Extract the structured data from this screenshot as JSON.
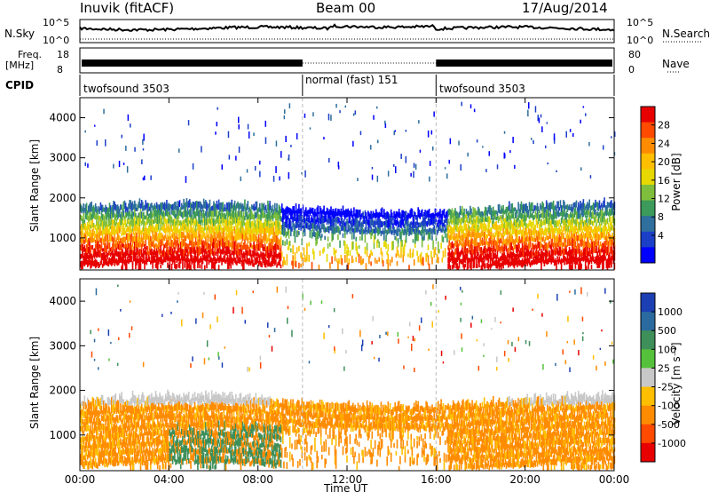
{
  "header": {
    "station": "Inuvik (fitACF)",
    "beam": "Beam 00",
    "date": "17/Aug/2014"
  },
  "strips": {
    "nsky_label": "N.Sky",
    "nsky_ticks": [
      "10^5",
      "10^0"
    ],
    "nsearch_label": "N.Search",
    "nsearch_ticks": [
      "10^5",
      "10^0"
    ],
    "freq_label_1": "Freq.",
    "freq_label_2": "[MHz]",
    "freq_ticks": [
      "18",
      "8"
    ],
    "nave_label": "Nave",
    "nave_ticks": [
      "80",
      "0"
    ],
    "cpid_label": "CPID",
    "cpid_segments": [
      {
        "label": "twofsound 3503",
        "start": 0,
        "end": 10
      },
      {
        "label": "normal (fast) 151",
        "start": 10,
        "end": 16
      },
      {
        "label": "twofsound 3503",
        "start": 16,
        "end": 24
      }
    ]
  },
  "chart_data": [
    {
      "type": "heatmap",
      "panel": "power",
      "ylabel": "Slant Range [km]",
      "xlabel": "Time UT",
      "xlim": [
        0,
        24
      ],
      "ylim": [
        200,
        4500
      ],
      "xticks": [
        "00:00",
        "04:00",
        "08:00",
        "12:00",
        "16:00",
        "20:00",
        "00:00"
      ],
      "yticks": [
        "1000",
        "2000",
        "3000",
        "4000"
      ],
      "colorbar": {
        "label": "Power [dB]",
        "ticks": [
          "28",
          "24",
          "20",
          "16",
          "12",
          "8",
          "4"
        ],
        "colors": [
          "#e80000",
          "#ff4a00",
          "#ff8c00",
          "#ffbf00",
          "#e6d800",
          "#7fbe3c",
          "#3c9a5a",
          "#2e6f9e",
          "#1c3fc8",
          "#0000ff"
        ]
      }
    },
    {
      "type": "heatmap",
      "panel": "velocity",
      "ylabel": "Slant Range [km]",
      "xlabel": "Time UT",
      "xlim": [
        0,
        24
      ],
      "ylim": [
        200,
        4500
      ],
      "xticks": [
        "00:00",
        "04:00",
        "08:00",
        "12:00",
        "16:00",
        "20:00",
        "00:00"
      ],
      "yticks": [
        "1000",
        "2000",
        "3000",
        "4000"
      ],
      "colorbar": {
        "label": "Velocity [m s⁻¹]",
        "ticks": [
          "1000",
          "500",
          "100",
          "25",
          "-25",
          "-100",
          "-500",
          "-1000"
        ],
        "colors": [
          "#1c3fb4",
          "#2b6a9e",
          "#3e8f5a",
          "#55c13a",
          "#c8c8c8",
          "#ffbf00",
          "#ff8c00",
          "#ff4a00",
          "#e80000"
        ]
      }
    }
  ]
}
